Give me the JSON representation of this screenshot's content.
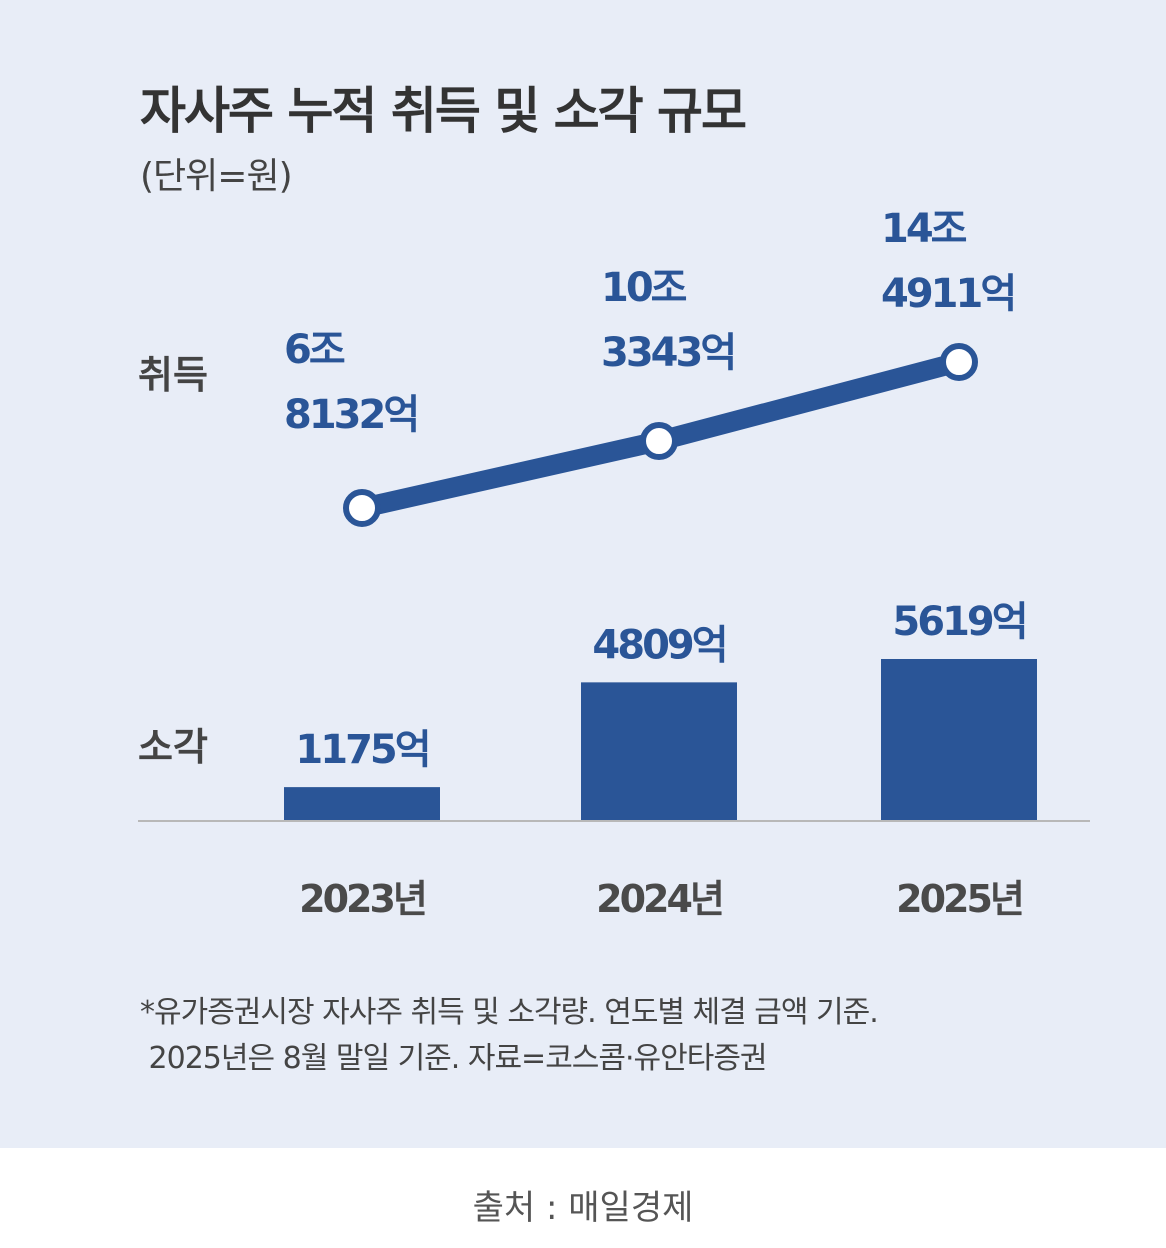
{
  "chart_data": {
    "type": "line+bar",
    "title": "자사주 누적 취득 및 소각 규모",
    "unit": "(단위=원)",
    "categories": [
      "2023년",
      "2024년",
      "2025년"
    ],
    "series": [
      {
        "name": "취득",
        "type": "line",
        "values": [
          68132,
          103343,
          144911
        ],
        "labels": [
          [
            "6조",
            "8132억"
          ],
          [
            "10조",
            "3343억"
          ],
          [
            "14조",
            "4911억"
          ]
        ]
      },
      {
        "name": "소각",
        "type": "bar",
        "values": [
          1175,
          4809,
          5619
        ],
        "labels": [
          "1175억",
          "4809억",
          "5619억"
        ]
      }
    ],
    "notes": [
      "*유가증권시장 자사주 취득 및 소각량. 연도별 체결 금액 기준.",
      " 2025년은 8월 말일 기준. 자료=코스콤·유안타증권"
    ],
    "colors": {
      "primary": "#2a5597",
      "background": "#e8edf7",
      "axis": "#b8b8b8"
    }
  },
  "source": "출처 : 매일경제"
}
